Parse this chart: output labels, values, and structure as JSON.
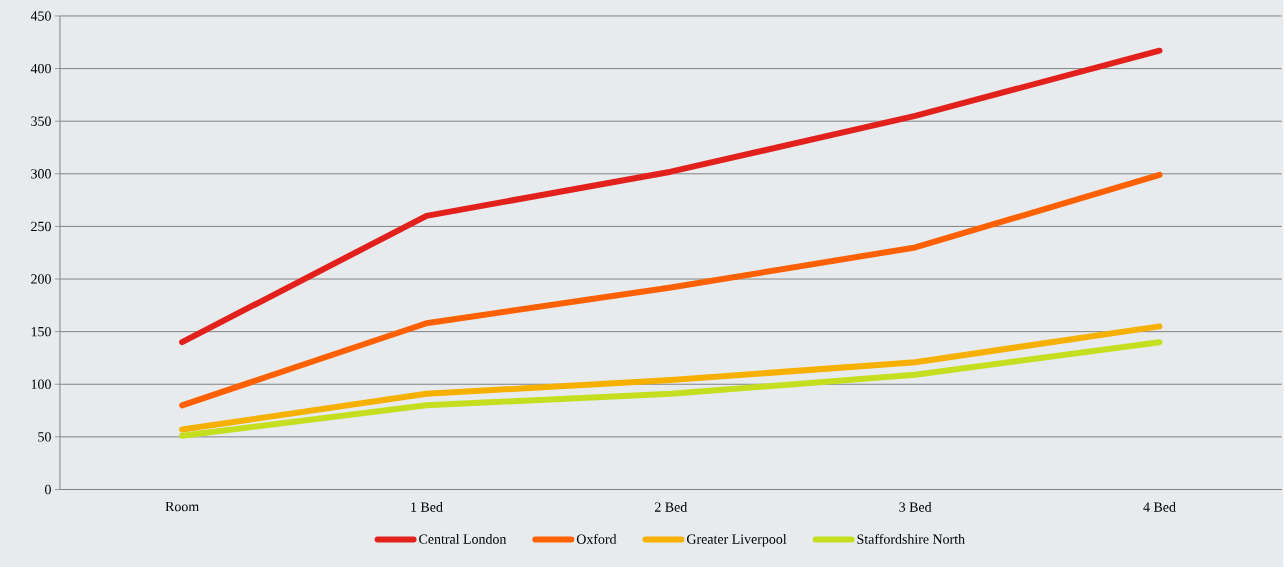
{
  "chart_data": {
    "type": "line",
    "categories": [
      "Room",
      "1 Bed",
      "2 Bed",
      "3 Bed",
      "4 Bed"
    ],
    "series": [
      {
        "name": "Central London",
        "color": "#e3211c",
        "values": [
          140,
          260,
          302,
          355,
          417
        ]
      },
      {
        "name": "Oxford",
        "color": "#ff6000",
        "values": [
          80,
          158,
          192,
          230,
          299
        ]
      },
      {
        "name": "Greater Liverpool",
        "color": "#f5b000",
        "values": [
          57,
          91,
          104,
          121,
          155
        ]
      },
      {
        "name": "Staffordshire North",
        "color": "#c5df20",
        "values": [
          51,
          80,
          91,
          109,
          140
        ]
      }
    ],
    "ylim": [
      0,
      450
    ],
    "yticks": [
      0,
      50,
      100,
      150,
      200,
      250,
      300,
      350,
      400,
      450
    ],
    "grid": "y",
    "legend": "bottom",
    "line_style": "solid"
  }
}
